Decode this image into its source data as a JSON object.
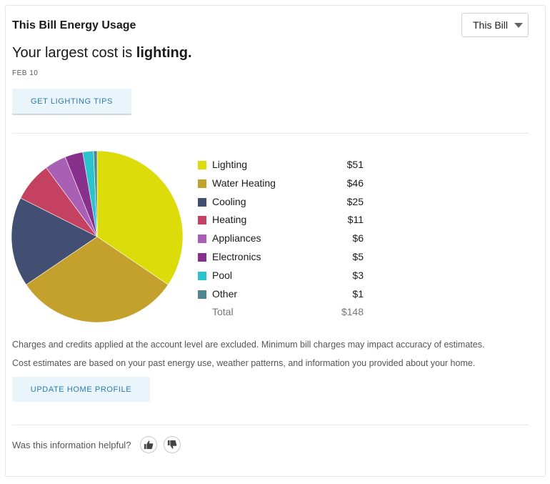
{
  "header": {
    "title": "This Bill Energy Usage",
    "period_select": {
      "selected": "This Bill"
    }
  },
  "summary": {
    "headline_prefix": "Your largest cost is ",
    "headline_emphasis": "lighting.",
    "date": "FEB 10",
    "tips_button": "GET LIGHTING TIPS"
  },
  "legend": {
    "items": [
      {
        "label": "Lighting",
        "value": "$51",
        "color": "#dcdc0a"
      },
      {
        "label": "Water Heating",
        "value": "$46",
        "color": "#c4a02c"
      },
      {
        "label": "Cooling",
        "value": "$25",
        "color": "#434f72"
      },
      {
        "label": "Heating",
        "value": "$11",
        "color": "#c54161"
      },
      {
        "label": "Appliances",
        "value": "$6",
        "color": "#a95fb3"
      },
      {
        "label": "Electronics",
        "value": "$5",
        "color": "#88318c"
      },
      {
        "label": "Pool",
        "value": "$3",
        "color": "#2cc4cc"
      },
      {
        "label": "Other",
        "value": "$1",
        "color": "#4f8690"
      }
    ],
    "total_label": "Total",
    "total_value": "$148"
  },
  "notes": {
    "line1": "Charges and credits applied at the account level are excluded. Minimum bill charges may impact accuracy of estimates.",
    "line2": "Cost estimates are based on your past energy use, weather patterns, and information you provided about your home.",
    "profile_button": "UPDATE HOME PROFILE"
  },
  "feedback": {
    "question": "Was this information helpful?",
    "thumbs_up": "thumbs-up-icon",
    "thumbs_down": "thumbs-down-icon"
  },
  "chart_data": {
    "type": "pie",
    "title": "This Bill Energy Usage",
    "categories": [
      "Lighting",
      "Water Heating",
      "Cooling",
      "Heating",
      "Appliances",
      "Electronics",
      "Pool",
      "Other"
    ],
    "values": [
      51,
      46,
      25,
      11,
      6,
      5,
      3,
      1
    ],
    "colors": [
      "#dcdc0a",
      "#c4a02c",
      "#434f72",
      "#c54161",
      "#a95fb3",
      "#88318c",
      "#2cc4cc",
      "#4f8690"
    ],
    "total": 148,
    "unit": "$",
    "start_angle": "top, clockwise",
    "legend_position": "right"
  }
}
